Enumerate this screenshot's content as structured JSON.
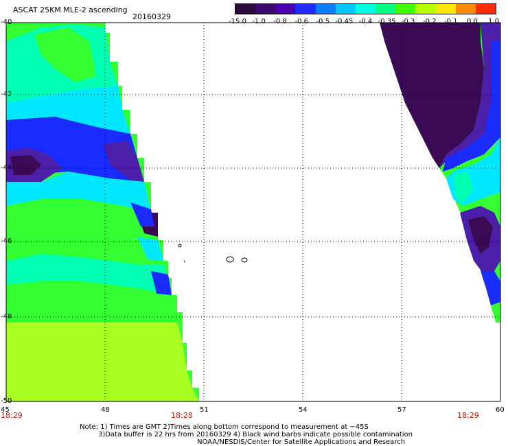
{
  "header": {
    "title": "ASCAT 25KM MLE-2 ascending",
    "date": "20160329"
  },
  "colorbar": {
    "labels": [
      "-15.0",
      "-1.0",
      "-0.8",
      "-0.6",
      "-0.5",
      "-0.45",
      "-0.4",
      "-0.35",
      "-0.3",
      "-0.2",
      "-0.1",
      "0.0",
      "1.0"
    ],
    "colors": [
      "#2b0a3d",
      "#3c0a6e",
      "#4b00b0",
      "#1f2bff",
      "#0b7dff",
      "#00c8ff",
      "#00ffe0",
      "#00ff80",
      "#3dff00",
      "#b8ff00",
      "#ffe600",
      "#ff8c00",
      "#ff2a00"
    ]
  },
  "axes": {
    "lat_labels": [
      "-40",
      "-42",
      "-44",
      "-46",
      "-48",
      "-50"
    ],
    "lon_labels": [
      "45",
      "48",
      "51",
      "54",
      "57",
      "60"
    ]
  },
  "times": {
    "left": "18:29",
    "middle": "18:28",
    "right": "18:29"
  },
  "notes": {
    "line1": "Note: 1) Times are GMT 2)Times along bottom correspond to measurement at −45S",
    "line2": "3)Data buffer is 22 hrs from 20160329 4) Black wind barbs indicate possible contamination",
    "line3": "NOAA/NESDIS/Center for Satellite Applications and Research"
  },
  "palette": {
    "dark_purple": "#3b0a55",
    "purple": "#4b1fa8",
    "blue": "#1a2bff",
    "cyan": "#00e8ff",
    "teal": "#00ffb0",
    "green": "#33ff33",
    "lime": "#a8ff22"
  }
}
